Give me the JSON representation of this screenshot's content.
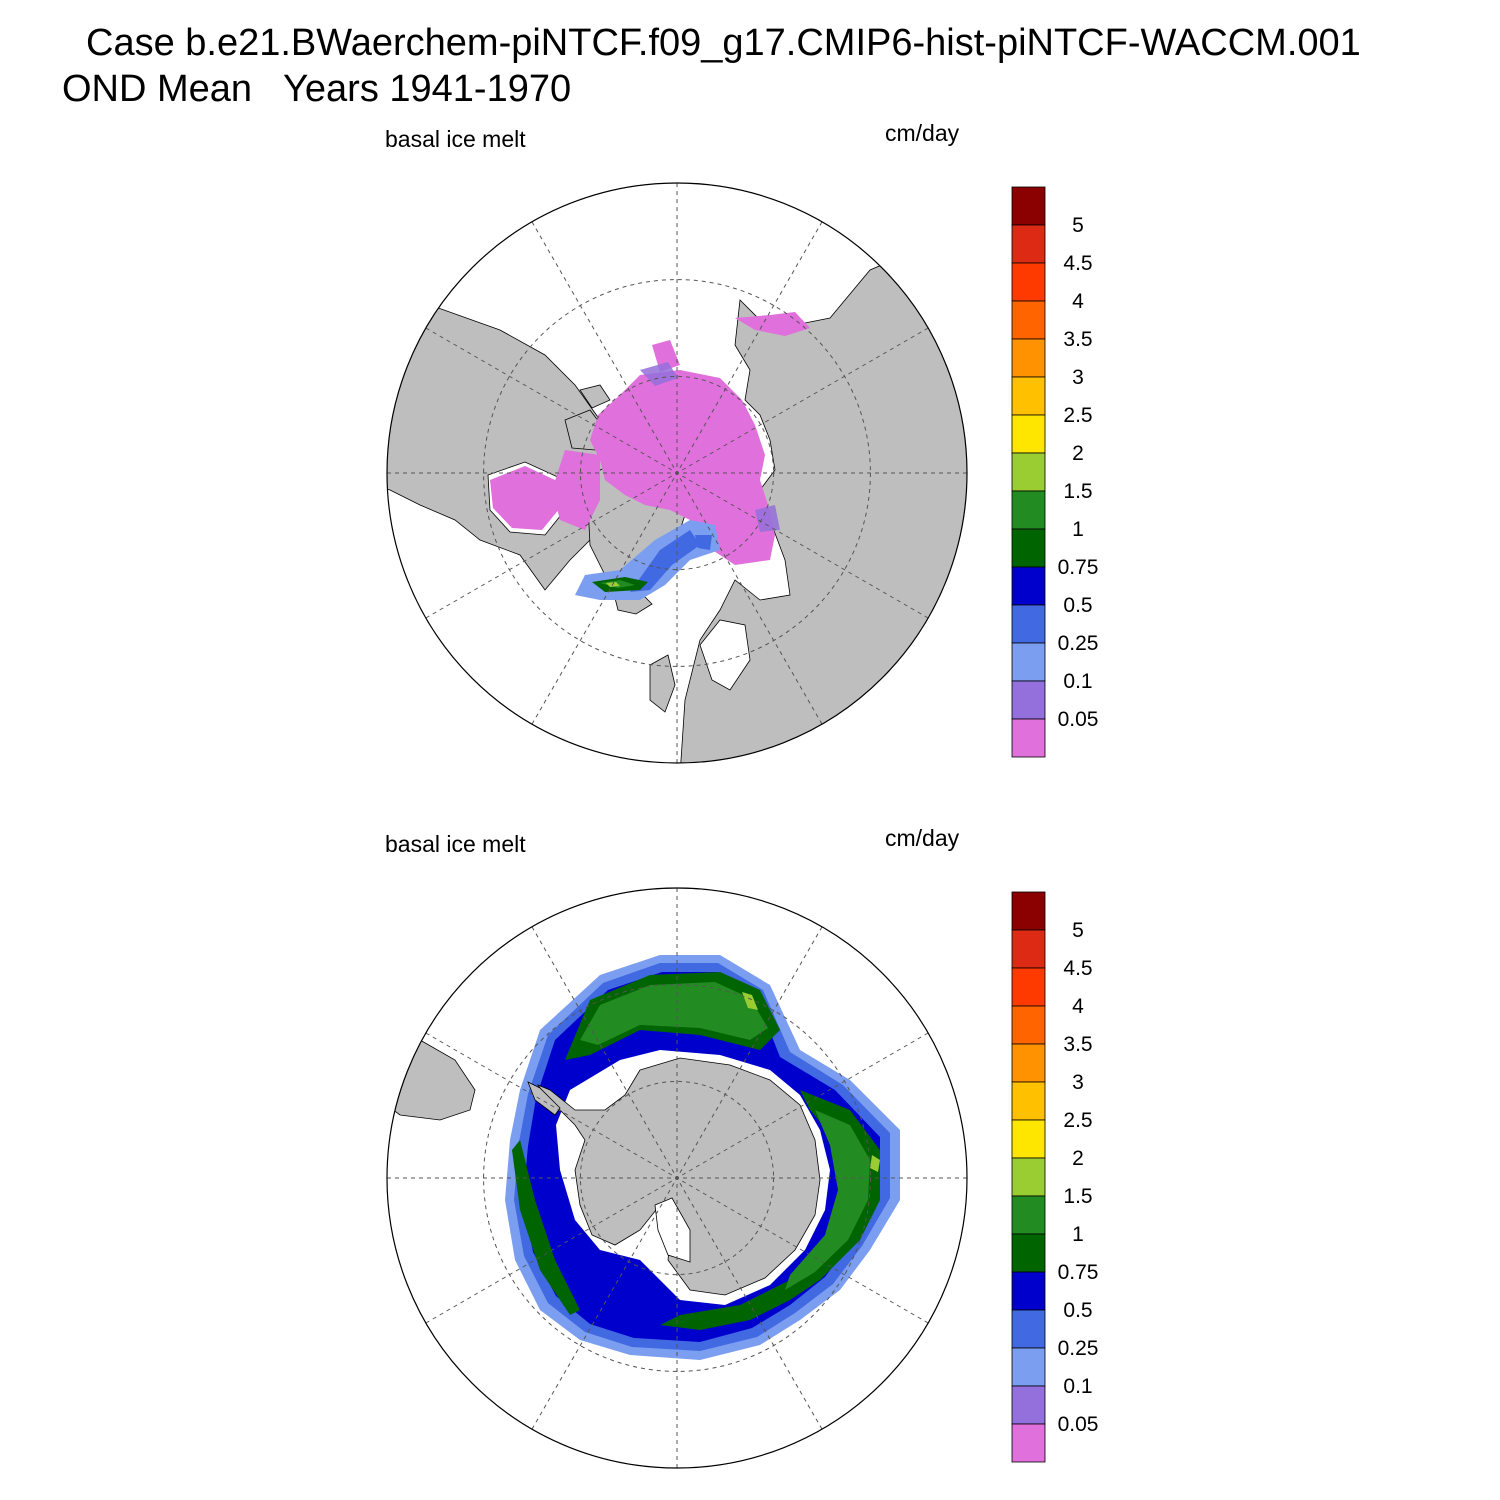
{
  "header": {
    "case_line": "Case b.e21.BWaerchem-piNTCF.f09_g17.CMIP6-hist-piNTCF-WACCM.001",
    "period_line": "OND Mean   Years 1941-1970"
  },
  "palette": {
    "land": "#bebebe",
    "ocean": "#ffffff",
    "grid": "#555555",
    "outline": "#000000"
  },
  "colorbar": {
    "labels": [
      "5",
      "4.5",
      "4",
      "3.5",
      "3",
      "2.5",
      "2",
      "1.5",
      "1",
      "0.75",
      "0.5",
      "0.25",
      "0.1",
      "0.05"
    ],
    "colors": [
      "#8b0000",
      "#dc2a14",
      "#ff3a00",
      "#ff6400",
      "#ff9200",
      "#ffc000",
      "#ffe600",
      "#9acd32",
      "#228b22",
      "#006400",
      "#0000cd",
      "#4169e1",
      "#7b9ef0",
      "#9370db",
      "#e070dc"
    ]
  },
  "panels": [
    {
      "id": "north",
      "variable": "basal ice melt",
      "units": "cm/day",
      "hemisphere": "Northern"
    },
    {
      "id": "south",
      "variable": "basal ice melt",
      "units": "cm/day",
      "hemisphere": "Southern"
    }
  ]
}
